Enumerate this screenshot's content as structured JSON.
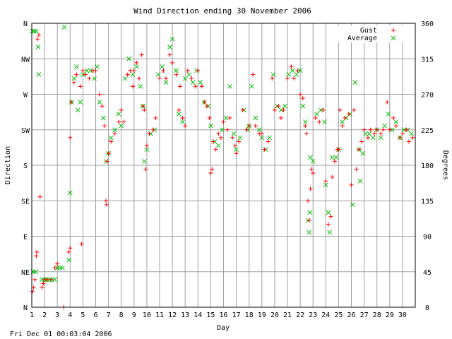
{
  "chart_data": {
    "type": "scatter",
    "title": "Wind Direction ending 30 November 2006",
    "xlabel": "Day",
    "ylabel": "Direction",
    "ylabel_right": "Degrees",
    "footer": "Fri Dec 01 00:03:04 2006",
    "xlim": [
      1,
      31
    ],
    "ylim": [
      0,
      360
    ],
    "x_ticks": [
      1,
      2,
      3,
      4,
      5,
      6,
      7,
      8,
      9,
      10,
      11,
      12,
      13,
      14,
      15,
      16,
      17,
      18,
      19,
      20,
      21,
      22,
      23,
      24,
      25,
      26,
      27,
      28,
      29,
      30
    ],
    "y_ticks_left": [
      {
        "value": 0,
        "label": "N"
      },
      {
        "value": 45,
        "label": "NE"
      },
      {
        "value": 90,
        "label": "E"
      },
      {
        "value": 135,
        "label": "SE"
      },
      {
        "value": 180,
        "label": "S"
      },
      {
        "value": 225,
        "label": "SW"
      },
      {
        "value": 270,
        "label": "W"
      },
      {
        "value": 315,
        "label": "NW"
      },
      {
        "value": 360,
        "label": "N"
      }
    ],
    "y_ticks_right": [
      0,
      45,
      90,
      135,
      180,
      225,
      270,
      315,
      360
    ],
    "grid": true,
    "legend_position": "top-right",
    "series": [
      {
        "name": "Gust",
        "marker": "+",
        "color": "#ff0000",
        "points": [
          [
            1.05,
            20
          ],
          [
            1.15,
            25
          ],
          [
            1.25,
            35
          ],
          [
            1.35,
            65
          ],
          [
            1.4,
            70
          ],
          [
            1.45,
            340
          ],
          [
            1.55,
            345
          ],
          [
            1.65,
            140
          ],
          [
            1.8,
            25
          ],
          [
            1.9,
            30
          ],
          [
            2.0,
            35
          ],
          [
            2.2,
            35
          ],
          [
            2.5,
            35
          ],
          [
            2.8,
            50
          ],
          [
            3.0,
            55
          ],
          [
            3.5,
            0
          ],
          [
            3.9,
            70
          ],
          [
            4.0,
            75
          ],
          [
            4.0,
            215
          ],
          [
            4.1,
            260
          ],
          [
            4.3,
            285
          ],
          [
            4.5,
            295
          ],
          [
            4.8,
            280
          ],
          [
            4.9,
            80
          ],
          [
            5.0,
            300
          ],
          [
            5.2,
            295
          ],
          [
            5.5,
            290
          ],
          [
            5.8,
            300
          ],
          [
            6.0,
            300
          ],
          [
            6.3,
            270
          ],
          [
            6.5,
            255
          ],
          [
            6.7,
            230
          ],
          [
            6.8,
            135
          ],
          [
            6.85,
            130
          ],
          [
            6.9,
            185
          ],
          [
            7.0,
            195
          ],
          [
            7.2,
            210
          ],
          [
            7.5,
            220
          ],
          [
            7.8,
            235
          ],
          [
            8.0,
            250
          ],
          [
            8.2,
            235
          ],
          [
            8.5,
            295
          ],
          [
            8.7,
            300
          ],
          [
            8.9,
            280
          ],
          [
            9.0,
            300
          ],
          [
            9.2,
            310
          ],
          [
            9.4,
            290
          ],
          [
            9.6,
            320
          ],
          [
            9.7,
            255
          ],
          [
            9.8,
            250
          ],
          [
            9.9,
            175
          ],
          [
            10.0,
            205
          ],
          [
            10.2,
            220
          ],
          [
            10.5,
            225
          ],
          [
            10.7,
            240
          ],
          [
            11.0,
            290
          ],
          [
            11.3,
            300
          ],
          [
            11.5,
            290
          ],
          [
            11.8,
            320
          ],
          [
            12.0,
            310
          ],
          [
            12.3,
            295
          ],
          [
            12.5,
            250
          ],
          [
            12.6,
            280
          ],
          [
            12.8,
            240
          ],
          [
            13.0,
            230
          ],
          [
            13.2,
            300
          ],
          [
            13.5,
            290
          ],
          [
            13.8,
            280
          ],
          [
            14.0,
            300
          ],
          [
            14.3,
            280
          ],
          [
            14.5,
            260
          ],
          [
            14.7,
            255
          ],
          [
            14.9,
            240
          ],
          [
            15.0,
            170
          ],
          [
            15.1,
            175
          ],
          [
            15.2,
            210
          ],
          [
            15.4,
            200
          ],
          [
            15.6,
            220
          ],
          [
            15.8,
            215
          ],
          [
            16.0,
            235
          ],
          [
            16.3,
            225
          ],
          [
            16.5,
            240
          ],
          [
            16.7,
            215
          ],
          [
            16.9,
            205
          ],
          [
            17.0,
            195
          ],
          [
            17.2,
            210
          ],
          [
            17.5,
            250
          ],
          [
            17.8,
            225
          ],
          [
            18.0,
            230
          ],
          [
            18.3,
            295
          ],
          [
            18.5,
            230
          ],
          [
            18.8,
            220
          ],
          [
            19.0,
            220
          ],
          [
            19.2,
            200
          ],
          [
            19.5,
            210
          ],
          [
            19.8,
            290
          ],
          [
            20.0,
            250
          ],
          [
            20.3,
            255
          ],
          [
            20.5,
            240
          ],
          [
            20.7,
            250
          ],
          [
            21.0,
            290
          ],
          [
            21.3,
            305
          ],
          [
            21.5,
            290
          ],
          [
            21.8,
            300
          ],
          [
            22.0,
            270
          ],
          [
            22.2,
            265
          ],
          [
            22.4,
            230
          ],
          [
            22.5,
            220
          ],
          [
            22.6,
            135
          ],
          [
            22.7,
            110
          ],
          [
            22.8,
            150
          ],
          [
            22.9,
            175
          ],
          [
            23.0,
            170
          ],
          [
            23.2,
            240
          ],
          [
            23.5,
            235
          ],
          [
            23.8,
            250
          ],
          [
            24.0,
            160
          ],
          [
            24.2,
            105
          ],
          [
            24.4,
            115
          ],
          [
            24.5,
            165
          ],
          [
            24.7,
            185
          ],
          [
            24.9,
            200
          ],
          [
            25.0,
            200
          ],
          [
            25.1,
            250
          ],
          [
            25.3,
            230
          ],
          [
            25.5,
            240
          ],
          [
            25.8,
            245
          ],
          [
            26.0,
            155
          ],
          [
            26.2,
            250
          ],
          [
            26.4,
            175
          ],
          [
            26.6,
            200
          ],
          [
            26.8,
            210
          ],
          [
            27.0,
            225
          ],
          [
            27.3,
            215
          ],
          [
            27.5,
            225
          ],
          [
            27.8,
            220
          ],
          [
            28.0,
            225
          ],
          [
            28.3,
            220
          ],
          [
            28.5,
            225
          ],
          [
            28.8,
            260
          ],
          [
            29.0,
            225
          ],
          [
            29.3,
            240
          ],
          [
            29.5,
            230
          ],
          [
            29.8,
            215
          ],
          [
            30.0,
            220
          ],
          [
            30.3,
            225
          ],
          [
            30.5,
            210
          ],
          [
            30.8,
            215
          ]
        ]
      },
      {
        "name": "Average",
        "marker": "x",
        "color": "#00bb00",
        "points": [
          [
            1.05,
            350
          ],
          [
            1.2,
            350
          ],
          [
            1.35,
            350
          ],
          [
            1.5,
            330
          ],
          [
            1.55,
            295
          ],
          [
            1.1,
            45
          ],
          [
            1.3,
            45
          ],
          [
            1.8,
            35
          ],
          [
            2.0,
            35
          ],
          [
            2.2,
            35
          ],
          [
            2.4,
            35
          ],
          [
            2.6,
            35
          ],
          [
            2.8,
            35
          ],
          [
            3.0,
            50
          ],
          [
            3.2,
            50
          ],
          [
            3.4,
            50
          ],
          [
            3.55,
            355
          ],
          [
            3.9,
            60
          ],
          [
            4.0,
            145
          ],
          [
            4.1,
            260
          ],
          [
            4.3,
            290
          ],
          [
            4.5,
            305
          ],
          [
            4.6,
            250
          ],
          [
            4.8,
            260
          ],
          [
            5.0,
            295
          ],
          [
            5.3,
            300
          ],
          [
            5.6,
            300
          ],
          [
            5.9,
            290
          ],
          [
            6.1,
            305
          ],
          [
            6.3,
            260
          ],
          [
            6.6,
            240
          ],
          [
            6.8,
            185
          ],
          [
            7.0,
            195
          ],
          [
            7.2,
            215
          ],
          [
            7.5,
            225
          ],
          [
            7.8,
            245
          ],
          [
            8.0,
            230
          ],
          [
            8.3,
            290
          ],
          [
            8.6,
            315
          ],
          [
            8.9,
            295
          ],
          [
            9.2,
            305
          ],
          [
            9.5,
            280
          ],
          [
            9.7,
            255
          ],
          [
            9.8,
            185
          ],
          [
            10.0,
            200
          ],
          [
            10.3,
            220
          ],
          [
            10.6,
            225
          ],
          [
            10.9,
            295
          ],
          [
            11.2,
            305
          ],
          [
            11.5,
            285
          ],
          [
            11.8,
            330
          ],
          [
            12.0,
            340
          ],
          [
            12.3,
            300
          ],
          [
            12.5,
            245
          ],
          [
            12.8,
            235
          ],
          [
            13.0,
            290
          ],
          [
            13.3,
            295
          ],
          [
            13.6,
            285
          ],
          [
            13.9,
            300
          ],
          [
            14.2,
            285
          ],
          [
            14.5,
            260
          ],
          [
            14.8,
            255
          ],
          [
            15.0,
            230
          ],
          [
            15.3,
            210
          ],
          [
            15.6,
            205
          ],
          [
            15.9,
            225
          ],
          [
            16.2,
            240
          ],
          [
            16.5,
            280
          ],
          [
            16.8,
            220
          ],
          [
            17.0,
            200
          ],
          [
            17.3,
            215
          ],
          [
            17.6,
            250
          ],
          [
            17.9,
            225
          ],
          [
            18.0,
            230
          ],
          [
            18.2,
            280
          ],
          [
            18.5,
            240
          ],
          [
            18.8,
            225
          ],
          [
            19.0,
            215
          ],
          [
            19.3,
            200
          ],
          [
            19.6,
            215
          ],
          [
            19.9,
            295
          ],
          [
            20.2,
            255
          ],
          [
            20.5,
            250
          ],
          [
            20.8,
            255
          ],
          [
            21.1,
            295
          ],
          [
            21.4,
            300
          ],
          [
            21.7,
            295
          ],
          [
            22.0,
            300
          ],
          [
            22.2,
            255
          ],
          [
            22.4,
            235
          ],
          [
            22.6,
            110
          ],
          [
            22.7,
            95
          ],
          [
            22.75,
            120
          ],
          [
            22.8,
            190
          ],
          [
            23.0,
            185
          ],
          [
            23.3,
            245
          ],
          [
            23.6,
            250
          ],
          [
            23.9,
            235
          ],
          [
            24.0,
            155
          ],
          [
            24.2,
            120
          ],
          [
            24.3,
            95
          ],
          [
            24.5,
            190
          ],
          [
            24.8,
            190
          ],
          [
            25.0,
            200
          ],
          [
            25.3,
            235
          ],
          [
            25.6,
            240
          ],
          [
            25.9,
            245
          ],
          [
            26.1,
            130
          ],
          [
            26.3,
            285
          ],
          [
            26.6,
            200
          ],
          [
            26.7,
            160
          ],
          [
            26.9,
            195
          ],
          [
            27.1,
            220
          ],
          [
            27.4,
            220
          ],
          [
            27.7,
            215
          ],
          [
            28.0,
            225
          ],
          [
            28.3,
            215
          ],
          [
            28.6,
            230
          ],
          [
            28.9,
            245
          ],
          [
            29.2,
            225
          ],
          [
            29.5,
            235
          ],
          [
            29.8,
            215
          ],
          [
            30.1,
            225
          ],
          [
            30.4,
            225
          ],
          [
            30.7,
            220
          ]
        ]
      }
    ]
  }
}
